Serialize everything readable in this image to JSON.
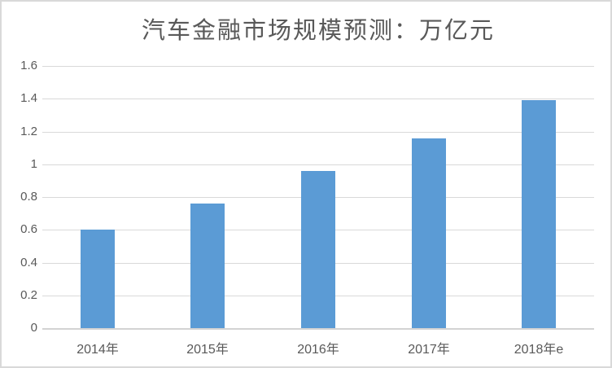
{
  "chart": {
    "frame_border_color": "#d9d9d9",
    "background_color": "#ffffff"
  },
  "chart_data": {
    "type": "bar",
    "title": "汽车金融市场规模预测：万亿元",
    "categories": [
      "2014年",
      "2015年",
      "2016年",
      "2017年",
      "2018年e"
    ],
    "values": [
      0.6,
      0.76,
      0.96,
      1.16,
      1.39
    ],
    "xlabel": "",
    "ylabel": "",
    "ylim": [
      0,
      1.6
    ],
    "yticks": [
      0,
      0.2,
      0.4,
      0.6,
      0.8,
      1,
      1.2,
      1.4,
      1.6
    ],
    "ytick_labels": [
      "0",
      "0.2",
      "0.4",
      "0.6",
      "0.8",
      "1",
      "1.2",
      "1.4",
      "1.6"
    ],
    "grid": true,
    "legend": false,
    "bar_color": "#5b9bd5",
    "gridline_color": "#d9d9d9",
    "text_color": "#595959"
  }
}
